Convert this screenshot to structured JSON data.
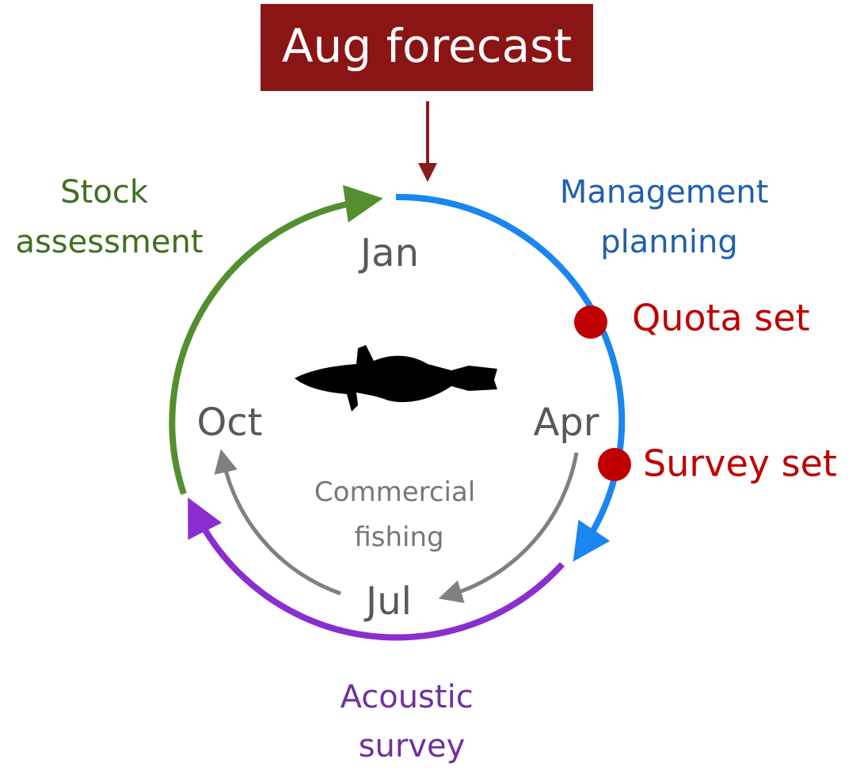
{
  "header": {
    "title": "Aug forecast"
  },
  "months": [
    "Jan",
    "Apr",
    "Jul",
    "Oct"
  ],
  "phases": [
    {
      "lines": [
        "Management",
        "planning"
      ]
    },
    {
      "lines": [
        "Acoustic",
        "survey"
      ]
    },
    {
      "lines": [
        "Stock",
        "assessment"
      ]
    },
    {
      "lines": [
        "Commercial",
        "fishing"
      ]
    }
  ],
  "events": [
    "Quota set",
    "Survey set"
  ]
}
